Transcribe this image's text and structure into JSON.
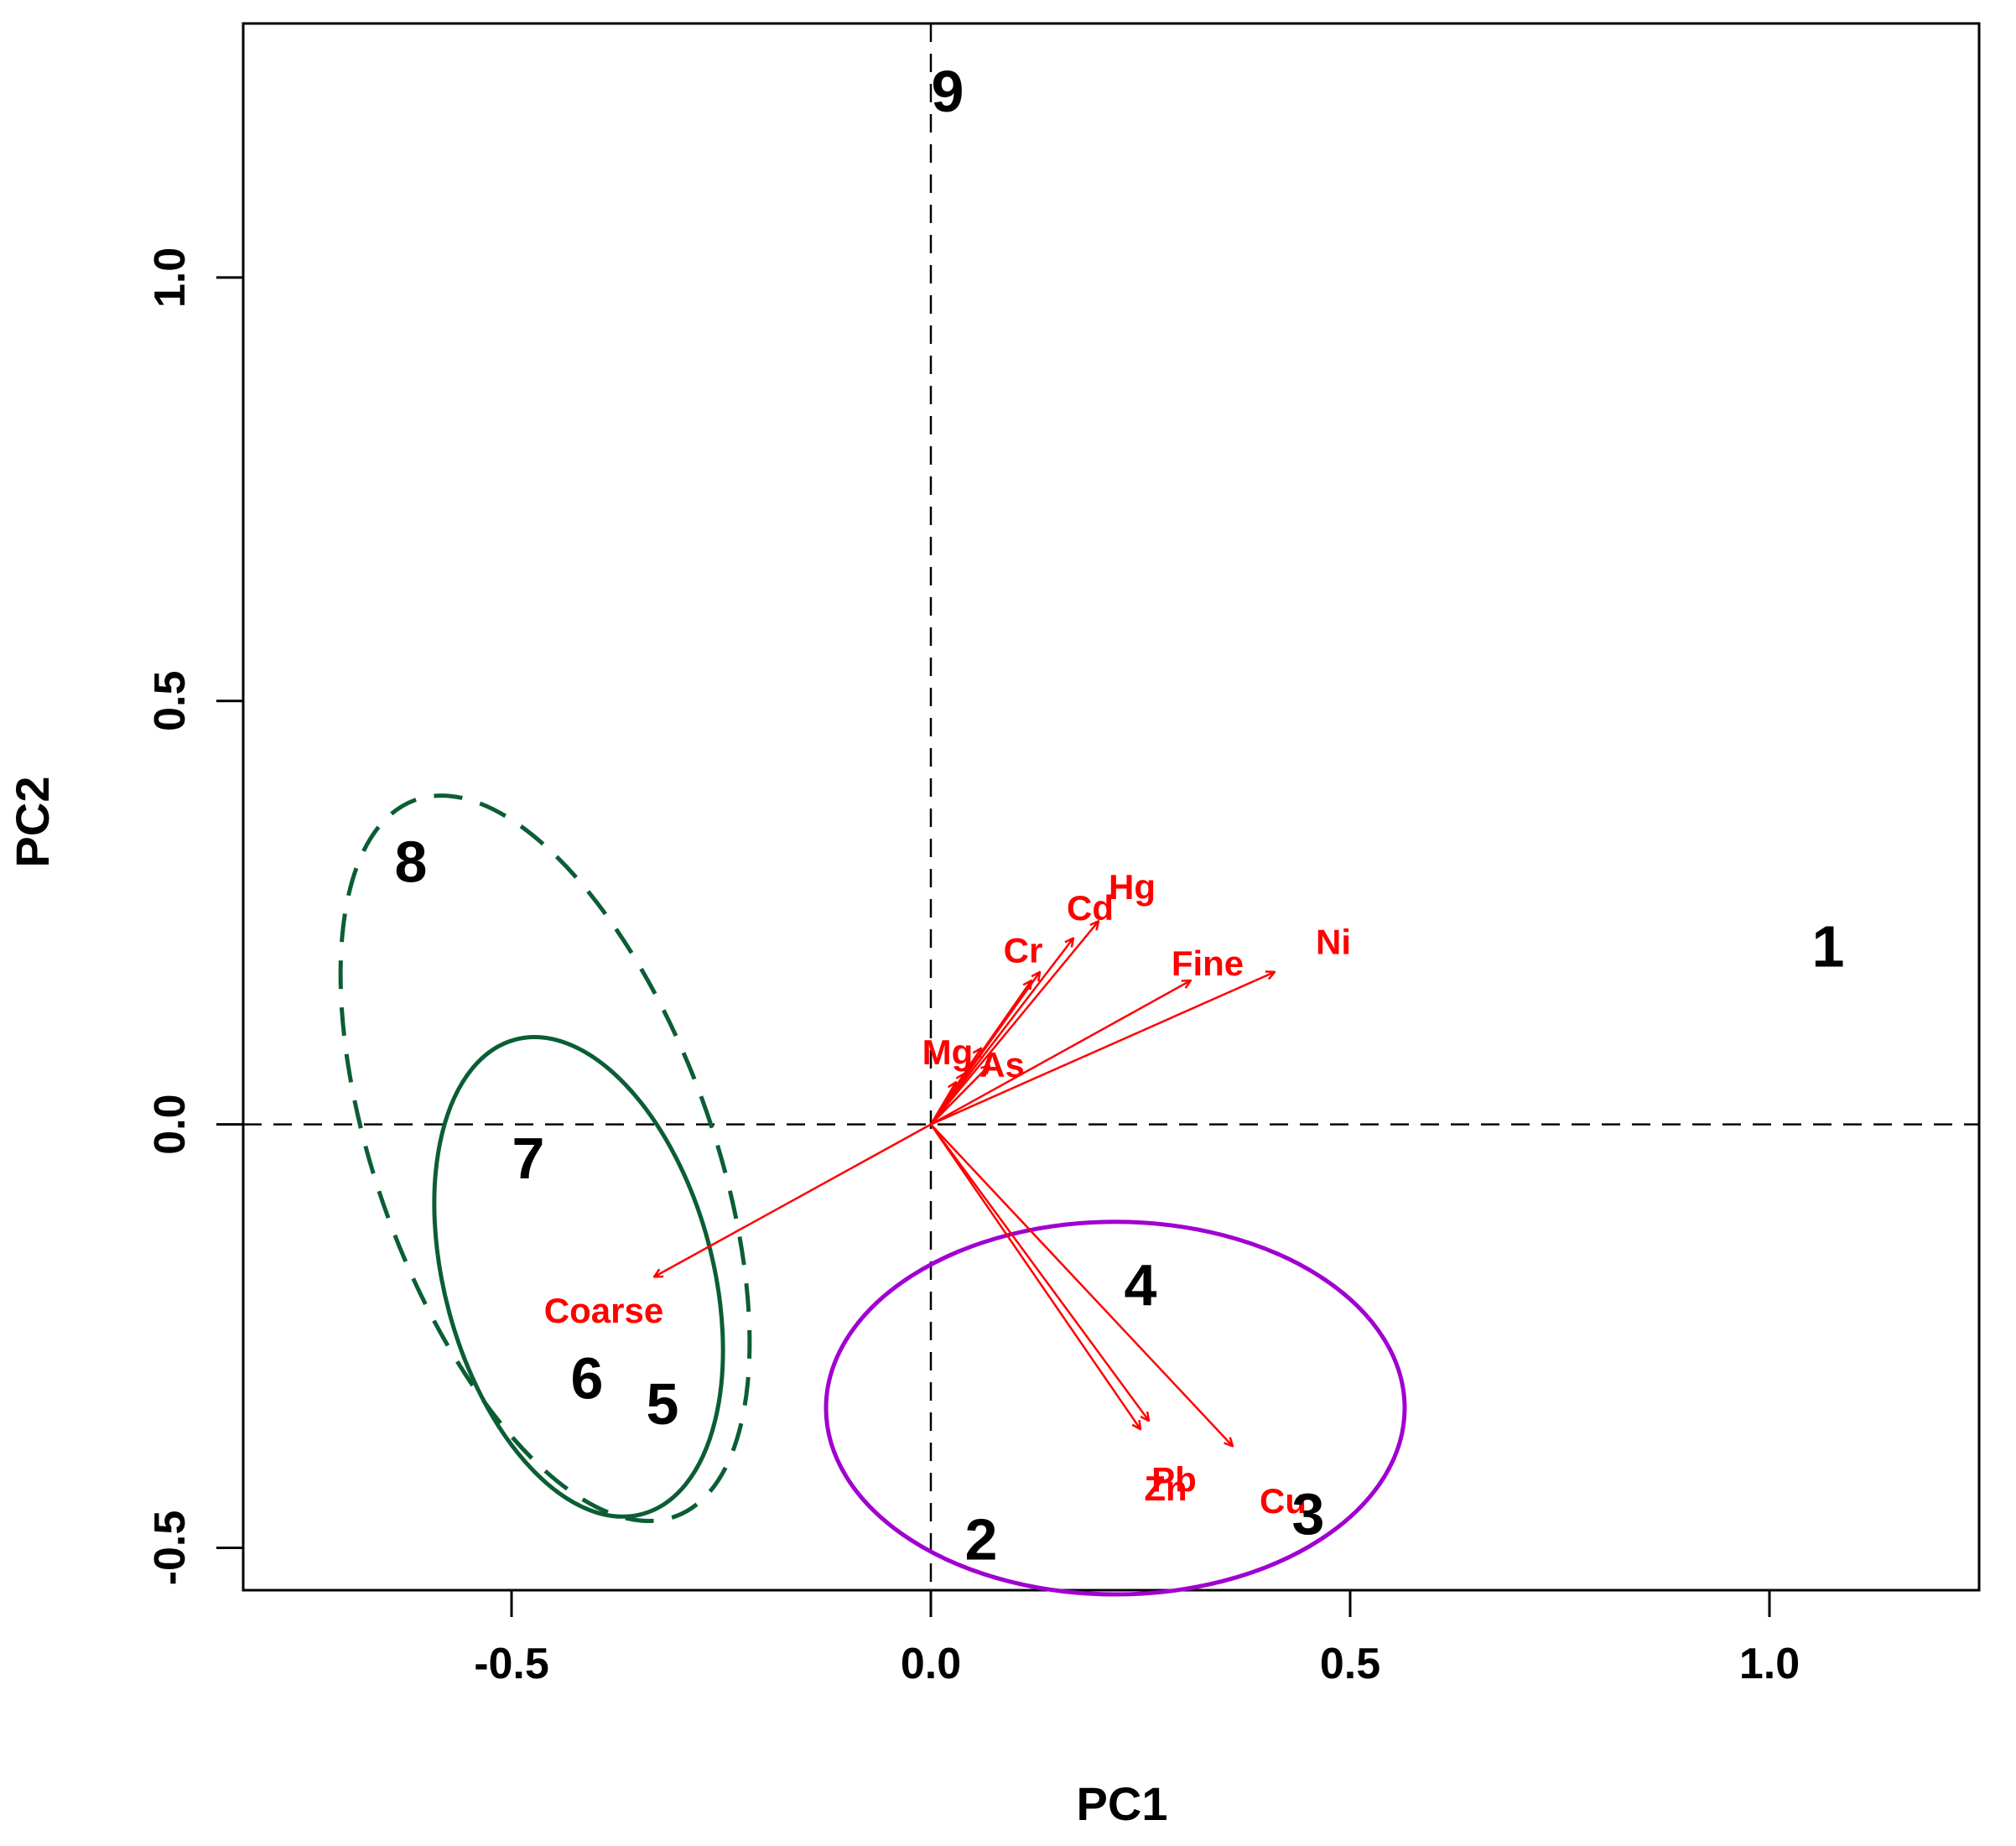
{
  "chart_data": {
    "type": "scatter",
    "title": "",
    "xlabel": "PC1",
    "ylabel": "PC2",
    "xlim": [
      -0.82,
      1.25
    ],
    "ylim": [
      -0.55,
      1.3
    ],
    "xticks": [
      -0.5,
      0.0,
      0.5,
      1.0
    ],
    "yticks": [
      -0.5,
      0.0,
      0.5,
      1.0
    ],
    "xtick_labels": [
      "-0.5",
      "0.0",
      "0.5",
      "1.0"
    ],
    "ytick_labels": [
      "-0.5",
      "0.0",
      "0.5",
      "1.0"
    ],
    "reference_lines": {
      "x": 0.0,
      "y": 0.0,
      "style": "dashed"
    },
    "colors": {
      "samples": "#000000",
      "loadings": "#ff0000",
      "group_green": "#0b5e34",
      "group_purple": "#a000d0"
    },
    "samples": [
      {
        "label": "1",
        "x": 1.07,
        "y": 0.21
      },
      {
        "label": "2",
        "x": 0.06,
        "y": -0.49
      },
      {
        "label": "3",
        "x": 0.45,
        "y": -0.46
      },
      {
        "label": "4",
        "x": 0.25,
        "y": -0.19
      },
      {
        "label": "5",
        "x": -0.32,
        "y": -0.33
      },
      {
        "label": "6",
        "x": -0.41,
        "y": -0.3
      },
      {
        "label": "7",
        "x": -0.48,
        "y": -0.04
      },
      {
        "label": "8",
        "x": -0.62,
        "y": 0.31
      },
      {
        "label": "9",
        "x": 0.02,
        "y": 1.22
      }
    ],
    "loadings": [
      {
        "label": "Hg",
        "x": 0.2,
        "y": 0.24,
        "label_x": 0.24,
        "label_y": 0.28
      },
      {
        "label": "Cd",
        "x": 0.17,
        "y": 0.22,
        "label_x": 0.19,
        "label_y": 0.255
      },
      {
        "label": "Cr",
        "x": 0.13,
        "y": 0.18,
        "label_x": 0.11,
        "label_y": 0.205
      },
      {
        "label": "Fine",
        "x": 0.31,
        "y": 0.17,
        "label_x": 0.33,
        "label_y": 0.19
      },
      {
        "label": "Ni",
        "x": 0.41,
        "y": 0.18,
        "label_x": 0.48,
        "label_y": 0.215
      },
      {
        "label": "Mg",
        "x": 0.04,
        "y": 0.06,
        "label_x": 0.02,
        "label_y": 0.085
      },
      {
        "label": "As",
        "x": 0.07,
        "y": 0.07,
        "label_x": 0.085,
        "label_y": 0.07
      },
      {
        "label": "Coarse",
        "x": -0.33,
        "y": -0.18,
        "label_x": -0.39,
        "label_y": -0.22
      },
      {
        "label": "Pb",
        "x": 0.26,
        "y": -0.35,
        "label_x": 0.29,
        "label_y": -0.42
      },
      {
        "label": "Zn",
        "x": 0.25,
        "y": -0.36,
        "label_x": 0.28,
        "label_y": -0.43
      },
      {
        "label": "Cu",
        "x": 0.36,
        "y": -0.38,
        "label_x": 0.42,
        "label_y": -0.445
      }
    ],
    "extra_arrows": [
      {
        "x": 0.03,
        "y": 0.05
      },
      {
        "x": 0.06,
        "y": 0.09
      },
      {
        "x": 0.12,
        "y": 0.17
      }
    ],
    "ellipses": [
      {
        "name": "ellipse-green-dashed",
        "color": "#0b5e34",
        "style": "dashed",
        "cx": -0.46,
        "cy": -0.04,
        "rx": 0.2,
        "ry": 0.45,
        "rotation_deg": -20
      },
      {
        "name": "ellipse-green-solid",
        "color": "#0b5e34",
        "style": "solid",
        "cx": -0.42,
        "cy": -0.18,
        "rx": 0.16,
        "ry": 0.29,
        "rotation_deg": -15
      },
      {
        "name": "ellipse-purple",
        "color": "#a000d0",
        "style": "solid",
        "cx": 0.22,
        "cy": -0.335,
        "rx": 0.345,
        "ry": 0.22,
        "rotation_deg": 0
      }
    ]
  }
}
